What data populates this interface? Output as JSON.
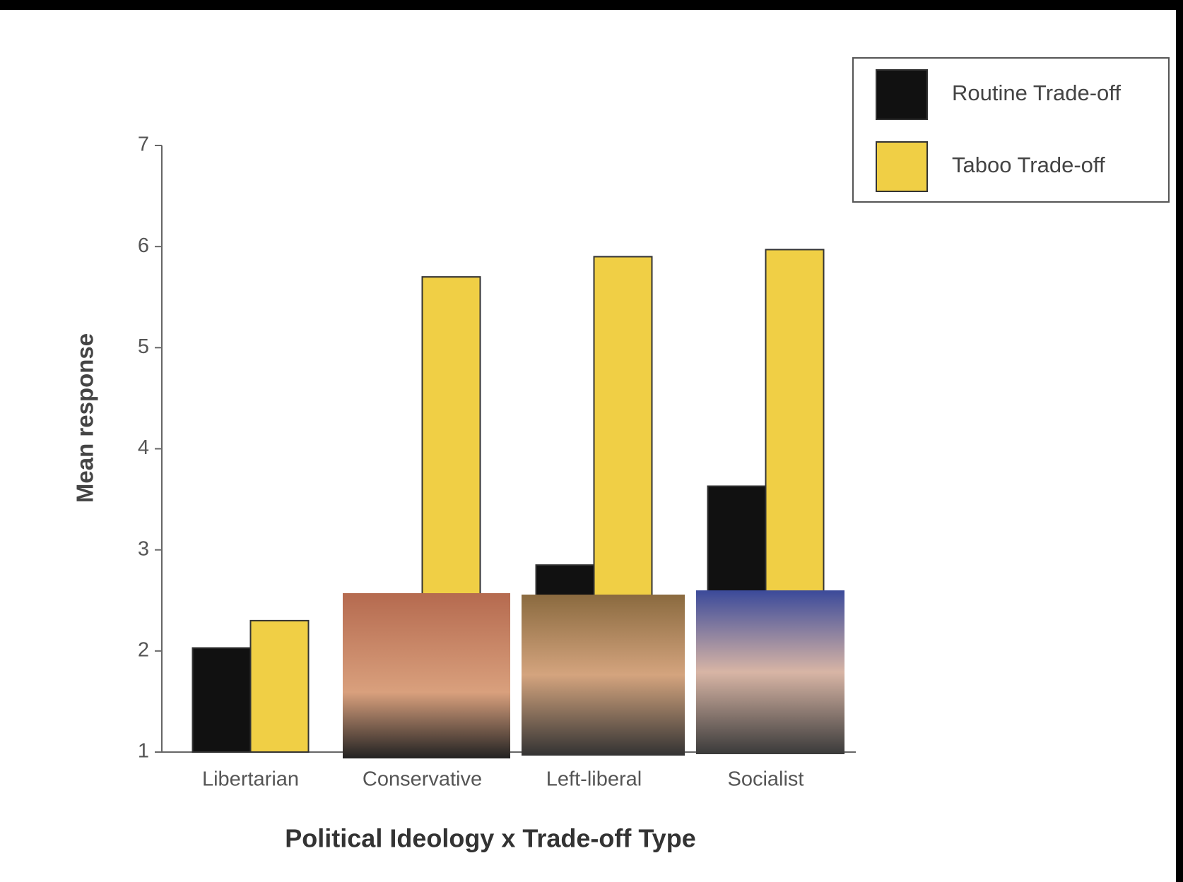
{
  "chart_data": {
    "type": "bar",
    "x_label": "Political Ideology x Trade-off Type",
    "y_label": "Mean response",
    "categories": [
      "Libertarian",
      "Conservative",
      "Left-liberal",
      "Socialist"
    ],
    "series": [
      {
        "name": "Routine Trade-off",
        "color": "#111111",
        "values": [
          2.03,
          null,
          2.85,
          3.63
        ]
      },
      {
        "name": "Taboo Trade-off",
        "color": "#f0cf45",
        "values": [
          2.3,
          5.7,
          5.9,
          5.97
        ]
      }
    ],
    "ylim": [
      1,
      7
    ],
    "yticks": [
      1,
      2,
      3,
      4,
      5,
      6,
      7
    ],
    "legend": "upper right",
    "grid": false
  }
}
